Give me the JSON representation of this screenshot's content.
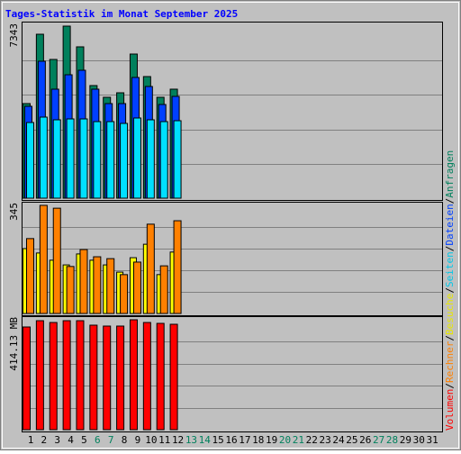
{
  "chart_data": {
    "type": "bar",
    "title": "Tages-Statistik im Monat September 2025",
    "categories": [
      "1",
      "2",
      "3",
      "4",
      "5",
      "6",
      "7",
      "8",
      "9",
      "10",
      "11",
      "12",
      "13",
      "14",
      "15",
      "16",
      "17",
      "18",
      "19",
      "20",
      "21",
      "22",
      "23",
      "24",
      "25",
      "26",
      "27",
      "28",
      "29",
      "30",
      "31"
    ],
    "category_colors": [
      "#000000",
      "#000000",
      "#000000",
      "#000000",
      "#000000",
      "#00805c",
      "#00805c",
      "#000000",
      "#000000",
      "#000000",
      "#000000",
      "#000000",
      "#00805c",
      "#00805c",
      "#000000",
      "#000000",
      "#000000",
      "#000000",
      "#000000",
      "#00805c",
      "#00805c",
      "#000000",
      "#000000",
      "#000000",
      "#000000",
      "#000000",
      "#00805c",
      "#00805c",
      "#000000",
      "#000000",
      "#000000"
    ],
    "grid_divisions": 5,
    "legend_separator": "/",
    "panels": [
      {
        "ylim": [
          0,
          7343
        ],
        "yticks": [
          7343
        ],
        "series": [
          {
            "name": "Anfragen",
            "color": "#00805c",
            "text_color": "#00805c",
            "values": [
              4037,
              6997,
              5921,
              7343,
              6459,
              4806,
              4306,
              4498,
              6151,
              5190,
              4306,
              4652,
              null,
              null,
              null,
              null,
              null,
              null,
              null,
              null,
              null,
              null,
              null,
              null,
              null,
              null,
              null,
              null,
              null,
              null,
              null
            ]
          },
          {
            "name": "Dateien",
            "color": "#0040ff",
            "text_color": "#0040ff",
            "values": [
              3921,
              5844,
              4652,
              5267,
              5459,
              4652,
              4037,
              4037,
              5152,
              4767,
              3998,
              4344,
              null,
              null,
              null,
              null,
              null,
              null,
              null,
              null,
              null,
              null,
              null,
              null,
              null,
              null,
              null,
              null,
              null,
              null,
              null
            ]
          },
          {
            "name": "Seiten",
            "color": "#00e0ff",
            "text_color": "#00c8e8",
            "values": [
              3229,
              3460,
              3345,
              3383,
              3383,
              3268,
              3268,
              3191,
              3422,
              3345,
              3268,
              3306,
              null,
              null,
              null,
              null,
              null,
              null,
              null,
              null,
              null,
              null,
              null,
              null,
              null,
              null,
              null,
              null,
              null,
              null,
              null
            ]
          }
        ]
      },
      {
        "ylim": [
          0,
          345
        ],
        "yticks": [
          345
        ],
        "series": [
          {
            "name": "Besuche",
            "color": "#ffff00",
            "text_color": "#e8e800",
            "values": [
              207,
              193,
              170,
              155,
              190,
              170,
              155,
              132,
              178,
              221,
              124,
              196,
              null,
              null,
              null,
              null,
              null,
              null,
              null,
              null,
              null,
              null,
              null,
              null,
              null,
              null,
              null,
              null,
              null,
              null,
              null
            ]
          },
          {
            "name": "Rechner",
            "color": "#ff8000",
            "text_color": "#ff8000",
            "values": [
              239,
              345,
              336,
              150,
              204,
              181,
              175,
              124,
              164,
              285,
              152,
              296,
              null,
              null,
              null,
              null,
              null,
              null,
              null,
              null,
              null,
              null,
              null,
              null,
              null,
              null,
              null,
              null,
              null,
              null,
              null
            ]
          }
        ]
      },
      {
        "ylim": [
          0,
          414.13
        ],
        "yticks": [
          {
            "value": 414.13,
            "label": "414.13 MB"
          }
        ],
        "series": [
          {
            "name": "Volumen",
            "color": "#ff0000",
            "text_color": "#ff0000",
            "values": [
              387.0,
              410.7,
              403.9,
              410.7,
              410.7,
              393.8,
              390.4,
              390.4,
              414.13,
              403.9,
              400.6,
              397.2,
              null,
              null,
              null,
              null,
              null,
              null,
              null,
              null,
              null,
              null,
              null,
              null,
              null,
              null,
              null,
              null,
              null,
              null,
              null
            ]
          }
        ]
      }
    ]
  }
}
